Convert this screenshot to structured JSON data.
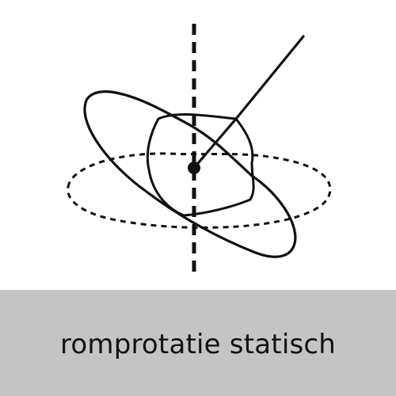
{
  "caption": {
    "label": "romprotatie statisch"
  },
  "figure": {
    "icon": "trunk-rotation-diagram-icon"
  },
  "colors": {
    "caption_background": "#c4c4c4",
    "line": "#111111",
    "background": "#ffffff"
  }
}
